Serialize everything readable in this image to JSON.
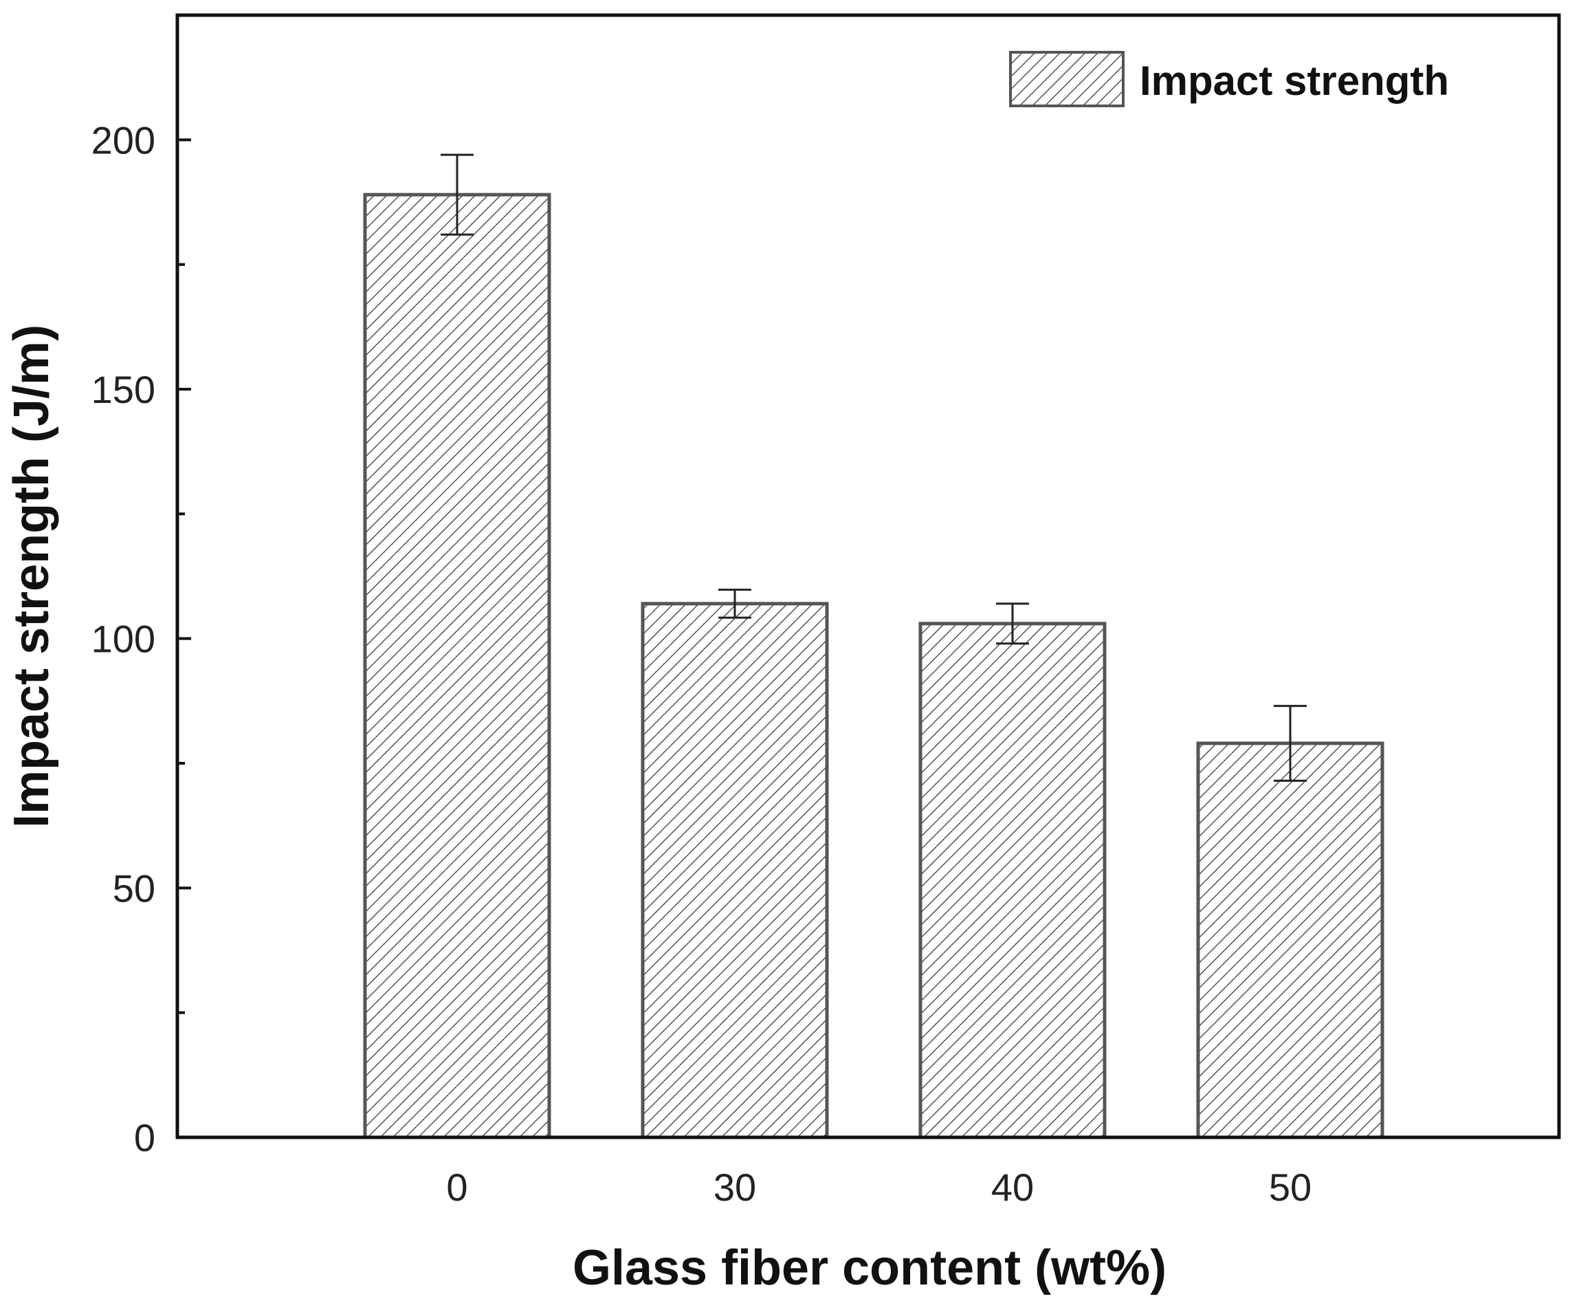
{
  "chart_data": {
    "type": "bar",
    "title": "",
    "xlabel": "Glass fiber content (wt%)",
    "ylabel": "Impact strength (J/m)",
    "categories": [
      "0",
      "30",
      "40",
      "50"
    ],
    "series": [
      {
        "name": "Impact strength",
        "values": [
          189,
          107,
          103,
          79
        ],
        "errors": [
          8,
          2.8,
          4,
          7.5
        ]
      }
    ],
    "ylim": [
      0,
      225
    ],
    "yticks": [
      0,
      50,
      100,
      150,
      200
    ],
    "yminor_ticks": [
      25,
      75,
      125,
      175
    ],
    "legend": {
      "label": "Impact strength",
      "position": "top-right"
    },
    "grid": false
  },
  "colors": {
    "bar_stroke": "#555555",
    "hatch": "#555555",
    "axis": "#111111",
    "background": "#ffffff"
  }
}
